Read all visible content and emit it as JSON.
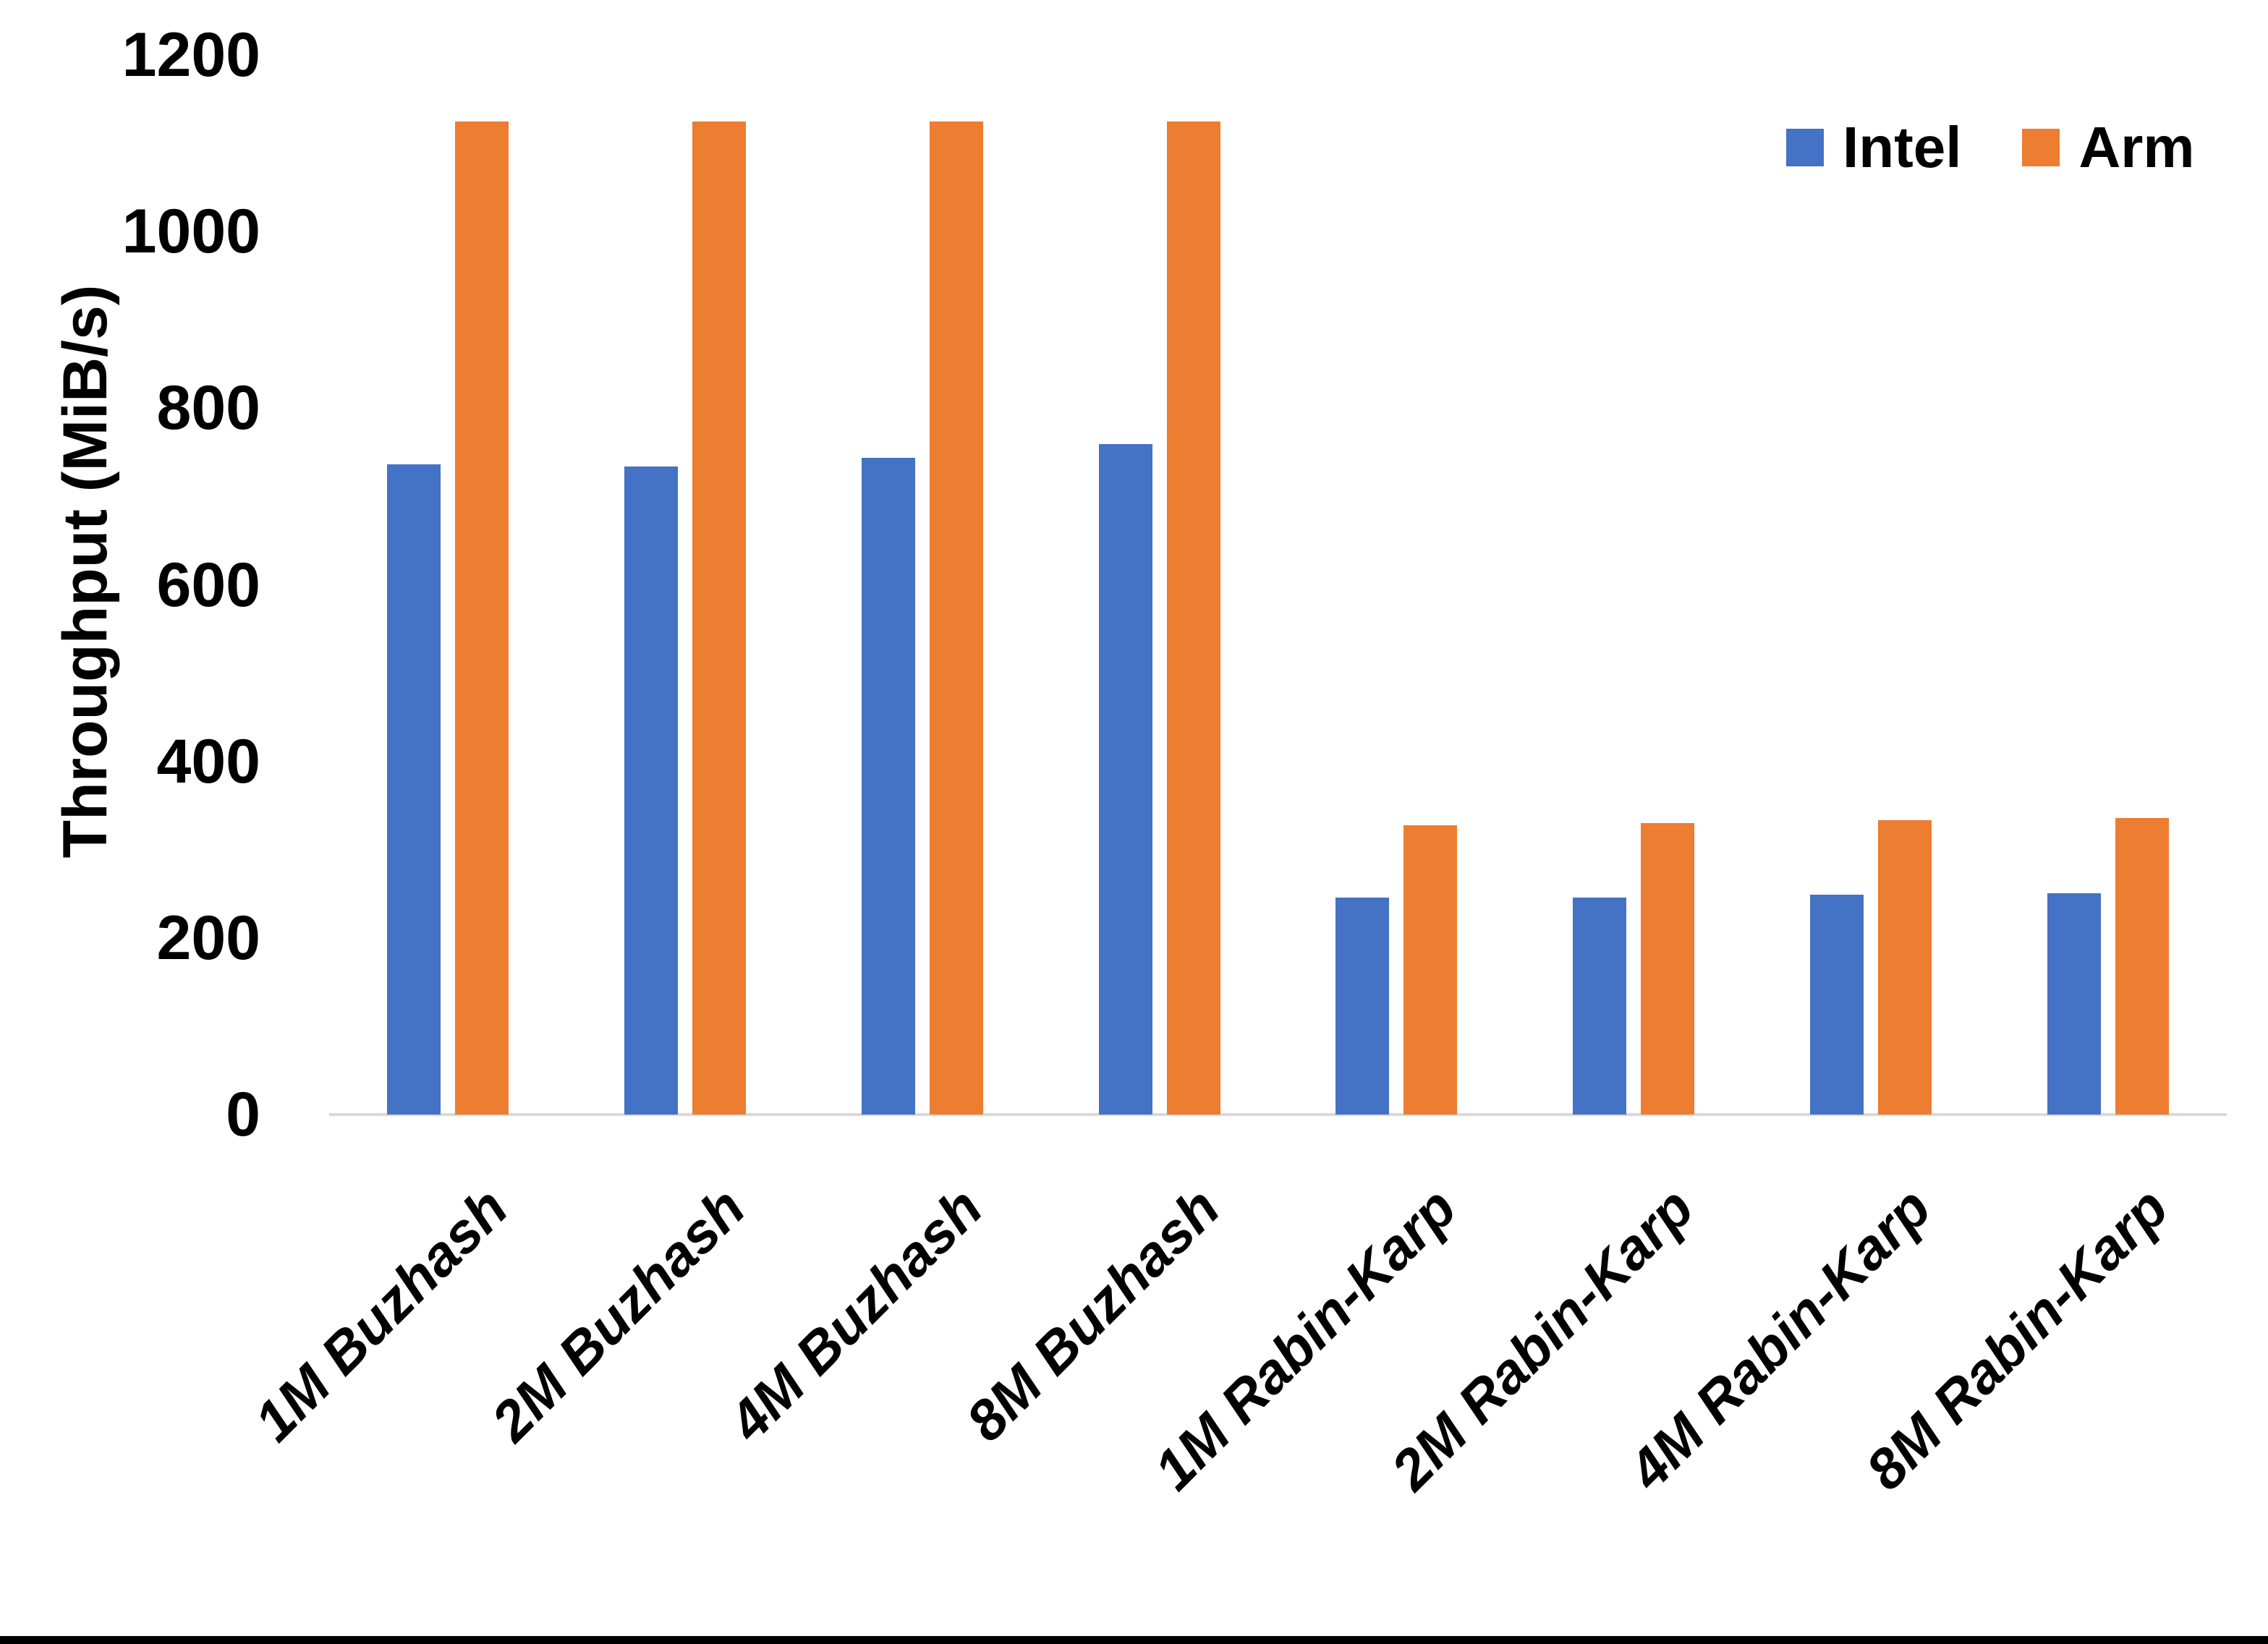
{
  "chart_data": {
    "type": "bar",
    "title": "",
    "xlabel": "",
    "ylabel": "Throughput (MiB/s)",
    "ylim": [
      0,
      1200
    ],
    "yticks": [
      0,
      200,
      400,
      600,
      800,
      1000,
      1200
    ],
    "grid": false,
    "legend_position": "top-right",
    "categories": [
      "1M Buzhash",
      "2M Buzhash",
      "4M Buzhash",
      "8M Buzhash",
      "1M Rabin-Karp",
      "2M Rabin-Karp",
      "4M Rabin-Karp",
      "8M Rabin-Karp"
    ],
    "series": [
      {
        "name": "Intel",
        "color": "#4472C4",
        "values": [
          736,
          734,
          744,
          759,
          246,
          246,
          249,
          251
        ]
      },
      {
        "name": "Arm",
        "color": "#ED7D31",
        "values": [
          1125,
          1125,
          1125,
          1125,
          328,
          330,
          333,
          336
        ]
      }
    ]
  },
  "colors": {
    "background": "#FFFFFF",
    "axis_line": "#D9D9D9",
    "text": "#000000",
    "frame_bottom": "#000000"
  }
}
